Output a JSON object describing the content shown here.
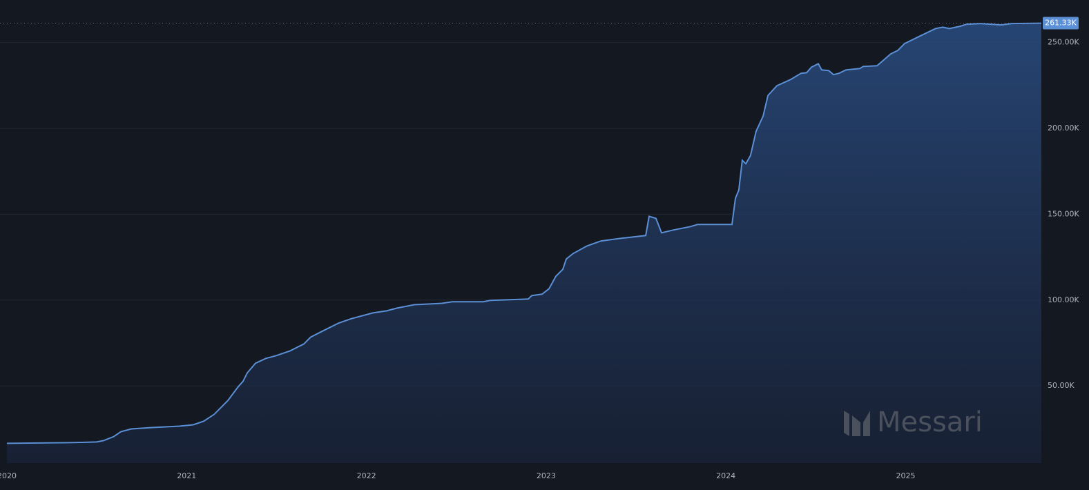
{
  "chart_data": {
    "type": "area",
    "x": [
      2020.0,
      2020.346,
      2020.499,
      2020.538,
      2020.595,
      2020.634,
      2020.692,
      2020.807,
      2020.96,
      2021.037,
      2021.095,
      2021.153,
      2021.229,
      2021.287,
      2021.314,
      2021.337,
      2021.383,
      2021.441,
      2021.498,
      2021.575,
      2021.652,
      2021.69,
      2021.767,
      2021.844,
      2021.921,
      2022.036,
      2022.113,
      2022.171,
      2022.267,
      2022.42,
      2022.478,
      2022.651,
      2022.689,
      2022.9,
      2022.92,
      2022.977,
      2023.016,
      2023.054,
      2023.093,
      2023.112,
      2023.15,
      2023.227,
      2023.304,
      2023.419,
      2023.554,
      2023.573,
      2023.611,
      2023.642,
      2023.707,
      2023.803,
      2023.842,
      2024.034,
      2024.053,
      2024.072,
      2024.091,
      2024.111,
      2024.137,
      2024.168,
      2024.207,
      2024.234,
      2024.284,
      2024.36,
      2024.418,
      2024.449,
      2024.476,
      2024.514,
      2024.533,
      2024.572,
      2024.599,
      2024.629,
      2024.668,
      2024.745,
      2024.764,
      2024.841,
      2024.917,
      2024.956,
      2024.994,
      2025.071,
      2025.167,
      2025.206,
      2025.244,
      2025.302,
      2025.34,
      2025.417,
      2025.532,
      2025.59,
      2025.755
    ],
    "series": [
      {
        "color": "#5b8fd6",
        "values": [
          16500,
          16900,
          17300,
          18100,
          20500,
          23300,
          24900,
          25700,
          26500,
          27300,
          29400,
          33400,
          41400,
          49500,
          52700,
          57500,
          63200,
          66000,
          67600,
          70400,
          74400,
          78400,
          82500,
          86500,
          89300,
          92500,
          93700,
          95300,
          97300,
          98100,
          99000,
          99000,
          99800,
          100600,
          102600,
          103400,
          106600,
          113800,
          117900,
          123900,
          127100,
          131500,
          134400,
          136000,
          137600,
          148800,
          147600,
          139200,
          140800,
          142800,
          144000,
          144000,
          159300,
          164100,
          181400,
          179400,
          184200,
          198300,
          207200,
          219200,
          224900,
          228500,
          232100,
          232500,
          235700,
          237700,
          234100,
          233700,
          231300,
          232100,
          234100,
          234900,
          236100,
          236500,
          243400,
          245400,
          249400,
          253400,
          258200,
          259000,
          258200,
          259500,
          260700,
          261100,
          260300,
          261100,
          261330
        ]
      }
    ],
    "last_value": {
      "value": 261330,
      "label": "261.33K"
    },
    "xlim": [
      2020,
      2025.755
    ],
    "xticks": [
      2020,
      2021,
      2022,
      2023,
      2024,
      2025
    ],
    "ylim": [
      5000,
      270000
    ],
    "yticks": [
      {
        "value": 50000,
        "label": "50.00K"
      },
      {
        "value": 100000,
        "label": "100.00K"
      },
      {
        "value": 150000,
        "label": "150.00K"
      },
      {
        "value": 200000,
        "label": "200.00K"
      },
      {
        "value": 250000,
        "label": "250.00K"
      }
    ],
    "grid": true,
    "watermark": "Messari"
  }
}
